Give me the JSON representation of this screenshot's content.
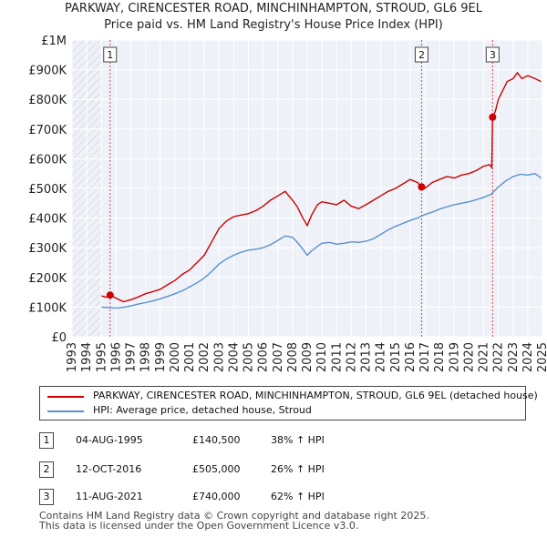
{
  "chart_data": {
    "type": "line",
    "title": "PARKWAY, CIRENCESTER ROAD, MINCHINHAMPTON, STROUD, GL6 9EL",
    "subtitle": "Price paid vs. HM Land Registry's House Price Index (HPI)",
    "y_tick_labels": [
      "£0",
      "£100K",
      "£200K",
      "£300K",
      "£400K",
      "£500K",
      "£600K",
      "£700K",
      "£800K",
      "£900K",
      "£1M"
    ],
    "y_ticks": [
      0,
      100000,
      200000,
      300000,
      400000,
      500000,
      600000,
      700000,
      800000,
      900000,
      1000000
    ],
    "ylim": [
      0,
      1000000
    ],
    "xlim": [
      1993,
      2025
    ],
    "x_tick_labels": [
      "1993",
      "1994",
      "1995",
      "1996",
      "1997",
      "1998",
      "1999",
      "2000",
      "2001",
      "2002",
      "2003",
      "2004",
      "2005",
      "2006",
      "2007",
      "2008",
      "2009",
      "2010",
      "2011",
      "2012",
      "2013",
      "2014",
      "2015",
      "2016",
      "2017",
      "2018",
      "2019",
      "2020",
      "2021",
      "2022",
      "2023",
      "2024",
      "2025"
    ],
    "hatch_before": 1995.0,
    "series": [
      {
        "name": "PARKWAY, CIRENCESTER ROAD, MINCHINHAMPTON, STROUD, GL6 9EL (detached house)",
        "color": "#cc0000",
        "x": [
          1995.0,
          1995.3,
          1995.59,
          1996.0,
          1996.5,
          1997.0,
          1997.5,
          1998.0,
          1998.5,
          1999.0,
          1999.5,
          2000.0,
          2000.5,
          2001.0,
          2001.5,
          2002.0,
          2002.5,
          2003.0,
          2003.5,
          2004.0,
          2004.5,
          2005.0,
          2005.5,
          2006.0,
          2006.5,
          2007.0,
          2007.5,
          2008.0,
          2008.3,
          2008.7,
          2009.0,
          2009.3,
          2009.7,
          2010.0,
          2010.5,
          2011.0,
          2011.5,
          2012.0,
          2012.5,
          2013.0,
          2013.5,
          2014.0,
          2014.5,
          2015.0,
          2015.5,
          2016.0,
          2016.5,
          2016.78,
          2017.0,
          2017.5,
          2018.0,
          2018.5,
          2019.0,
          2019.5,
          2020.0,
          2020.5,
          2021.0,
          2021.4,
          2021.55,
          2021.61,
          2021.8,
          2022.0,
          2022.3,
          2022.6,
          2023.0,
          2023.3,
          2023.6,
          2024.0,
          2024.5,
          2024.9
        ],
        "y": [
          138000,
          133000,
          140500,
          130000,
          118000,
          125000,
          134000,
          145000,
          152000,
          160000,
          175000,
          190000,
          210000,
          225000,
          250000,
          275000,
          320000,
          365000,
          390000,
          405000,
          410000,
          415000,
          425000,
          440000,
          460000,
          475000,
          490000,
          460000,
          440000,
          400000,
          375000,
          410000,
          445000,
          455000,
          450000,
          445000,
          460000,
          440000,
          432000,
          445000,
          460000,
          475000,
          490000,
          500000,
          515000,
          530000,
          520000,
          505000,
          500000,
          520000,
          530000,
          540000,
          535000,
          545000,
          550000,
          560000,
          575000,
          580000,
          570000,
          740000,
          760000,
          800000,
          830000,
          860000,
          870000,
          890000,
          870000,
          880000,
          870000,
          860000
        ]
      },
      {
        "name": "HPI: Average price, detached house, Stroud",
        "color": "#5b8fd0",
        "x": [
          1995.0,
          1995.5,
          1996.0,
          1996.5,
          1997.0,
          1997.5,
          1998.0,
          1998.5,
          1999.0,
          1999.5,
          2000.0,
          2000.5,
          2001.0,
          2001.5,
          2002.0,
          2002.5,
          2003.0,
          2003.5,
          2004.0,
          2004.5,
          2005.0,
          2005.5,
          2006.0,
          2006.5,
          2007.0,
          2007.5,
          2008.0,
          2008.3,
          2008.7,
          2009.0,
          2009.3,
          2009.7,
          2010.0,
          2010.5,
          2011.0,
          2011.5,
          2012.0,
          2012.5,
          2013.0,
          2013.5,
          2014.0,
          2014.5,
          2015.0,
          2015.5,
          2016.0,
          2016.5,
          2017.0,
          2017.5,
          2018.0,
          2018.5,
          2019.0,
          2019.5,
          2020.0,
          2020.5,
          2021.0,
          2021.5,
          2022.0,
          2022.5,
          2023.0,
          2023.5,
          2024.0,
          2024.5,
          2024.9
        ],
        "y": [
          100000,
          98000,
          97000,
          99000,
          104000,
          110000,
          115000,
          121000,
          128000,
          136000,
          145000,
          155000,
          168000,
          182000,
          198000,
          220000,
          245000,
          262000,
          275000,
          285000,
          292000,
          295000,
          300000,
          310000,
          325000,
          340000,
          335000,
          320000,
          295000,
          275000,
          290000,
          305000,
          315000,
          318000,
          312000,
          315000,
          320000,
          318000,
          322000,
          330000,
          345000,
          360000,
          372000,
          382000,
          392000,
          400000,
          412000,
          420000,
          430000,
          438000,
          445000,
          450000,
          455000,
          462000,
          470000,
          480000,
          505000,
          525000,
          540000,
          548000,
          545000,
          550000,
          535000
        ]
      }
    ],
    "sales": [
      {
        "num": "1",
        "x": 1995.59,
        "y": 140500,
        "date": "04-AUG-1995",
        "price": "£140,500",
        "hpi": "38% ↑ HPI"
      },
      {
        "num": "2",
        "x": 2016.78,
        "y": 505000,
        "date": "12-OCT-2016",
        "price": "£505,000",
        "hpi": "26% ↑ HPI"
      },
      {
        "num": "3",
        "x": 2021.61,
        "y": 740000,
        "date": "11-AUG-2021",
        "price": "£740,000",
        "hpi": "62% ↑ HPI"
      }
    ]
  },
  "legend": {
    "property_label": "PARKWAY, CIRENCESTER ROAD, MINCHINHAMPTON, STROUD, GL6 9EL (detached house)",
    "hpi_label": "HPI: Average price, detached house, Stroud"
  },
  "footer": {
    "line1": "Contains HM Land Registry data © Crown copyright and database right 2025.",
    "line2": "This data is licensed under the Open Government Licence v3.0."
  }
}
